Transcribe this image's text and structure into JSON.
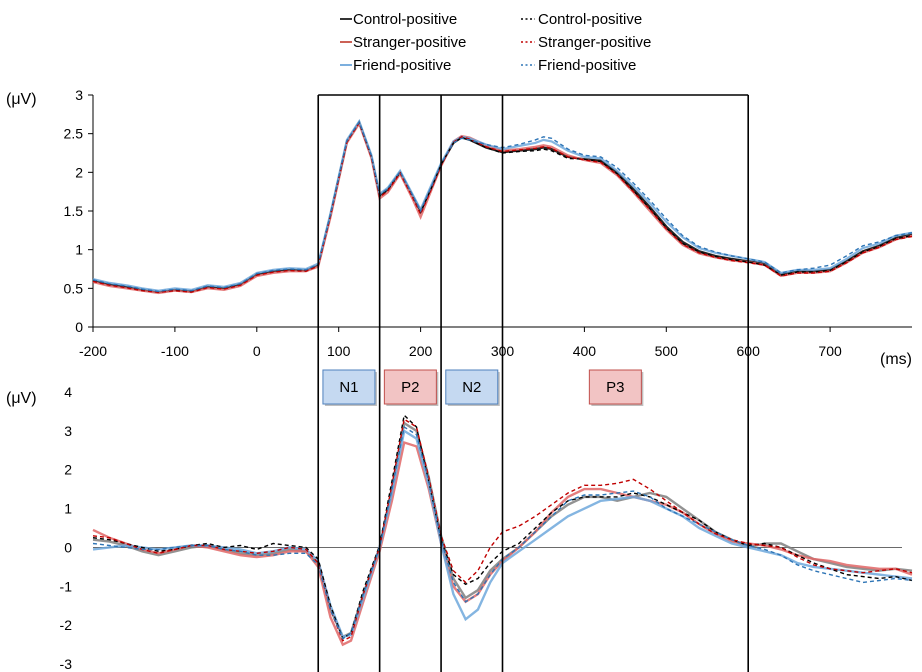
{
  "legend": {
    "left": [
      {
        "label": "Control-positive",
        "color": "#000000",
        "style": "solid"
      },
      {
        "label": "Stranger-positive",
        "color": "#c0392b",
        "style": "solid"
      },
      {
        "label": "Friend-positive",
        "color": "#5b9bd5",
        "style": "solid"
      }
    ],
    "right": [
      {
        "label": "Control-positive",
        "color": "#000000",
        "style": "dotted"
      },
      {
        "label": "Stranger-positive",
        "color": "#c00000",
        "style": "dotted"
      },
      {
        "label": "Friend-positive",
        "color": "#2e75b6",
        "style": "dotted"
      }
    ]
  },
  "axis_units": {
    "top_y": "(μV)",
    "bottom_y": "(μV)",
    "x": "(ms)"
  },
  "components": [
    {
      "label": "N1",
      "color": "#c5d9f1",
      "border": "#4f81bd"
    },
    {
      "label": "P2",
      "color": "#f2c4c4",
      "border": "#c0504d"
    },
    {
      "label": "N2",
      "color": "#c5d9f1",
      "border": "#4f81bd"
    },
    {
      "label": "P3",
      "color": "#f2c4c4",
      "border": "#c0504d"
    }
  ],
  "window_boundaries_ms": [
    75,
    150,
    225,
    300,
    600
  ],
  "chart_data": [
    {
      "type": "line",
      "xlabel": "(ms)",
      "ylabel": "(μV)",
      "xlim": [
        -200,
        800
      ],
      "ylim": [
        0,
        3
      ],
      "xticks": [
        -200,
        -100,
        0,
        100,
        200,
        300,
        400,
        500,
        600,
        700
      ],
      "yticks": [
        0,
        0.5,
        1,
        1.5,
        2,
        2.5,
        3
      ],
      "x": [
        -200,
        -180,
        -160,
        -140,
        -120,
        -100,
        -80,
        -60,
        -40,
        -20,
        0,
        20,
        40,
        60,
        75,
        90,
        110,
        125,
        140,
        150,
        160,
        175,
        190,
        200,
        215,
        225,
        240,
        250,
        260,
        280,
        300,
        320,
        340,
        350,
        360,
        380,
        400,
        420,
        440,
        460,
        480,
        500,
        520,
        540,
        560,
        580,
        600,
        620,
        640,
        660,
        680,
        700,
        720,
        740,
        760,
        780,
        800
      ],
      "series": [
        {
          "name": "Control-positive",
          "color": "#000000",
          "style": "solid",
          "values": [
            0.6,
            0.55,
            0.52,
            0.48,
            0.45,
            0.48,
            0.46,
            0.52,
            0.5,
            0.55,
            0.68,
            0.72,
            0.74,
            0.73,
            0.8,
            1.45,
            2.4,
            2.65,
            2.2,
            1.7,
            1.78,
            2.0,
            1.7,
            1.5,
            1.85,
            2.1,
            2.38,
            2.45,
            2.42,
            2.32,
            2.26,
            2.28,
            2.3,
            2.32,
            2.3,
            2.2,
            2.17,
            2.15,
            2.0,
            1.78,
            1.55,
            1.3,
            1.1,
            0.98,
            0.92,
            0.88,
            0.85,
            0.82,
            0.68,
            0.72,
            0.72,
            0.74,
            0.85,
            0.98,
            1.05,
            1.15,
            1.2
          ]
        },
        {
          "name": "Stranger-positive",
          "color": "#e06666",
          "style": "solid",
          "values": [
            0.58,
            0.53,
            0.5,
            0.47,
            0.44,
            0.47,
            0.45,
            0.5,
            0.48,
            0.53,
            0.66,
            0.7,
            0.72,
            0.72,
            0.78,
            1.42,
            2.38,
            2.63,
            2.18,
            1.66,
            1.74,
            1.98,
            1.66,
            1.42,
            1.82,
            2.08,
            2.4,
            2.47,
            2.45,
            2.35,
            2.28,
            2.3,
            2.33,
            2.35,
            2.33,
            2.22,
            2.16,
            2.12,
            1.96,
            1.74,
            1.5,
            1.26,
            1.06,
            0.95,
            0.9,
            0.86,
            0.84,
            0.8,
            0.66,
            0.7,
            0.7,
            0.72,
            0.83,
            0.96,
            1.03,
            1.13,
            1.18
          ]
        },
        {
          "name": "Friend-positive",
          "color": "#6fa8dc",
          "style": "solid",
          "values": [
            0.62,
            0.57,
            0.54,
            0.5,
            0.47,
            0.5,
            0.48,
            0.54,
            0.52,
            0.57,
            0.7,
            0.74,
            0.76,
            0.75,
            0.82,
            1.47,
            2.42,
            2.66,
            2.22,
            1.72,
            1.8,
            2.02,
            1.72,
            1.52,
            1.88,
            2.12,
            2.4,
            2.46,
            2.44,
            2.36,
            2.3,
            2.34,
            2.38,
            2.42,
            2.4,
            2.28,
            2.2,
            2.18,
            2.02,
            1.82,
            1.6,
            1.36,
            1.16,
            1.02,
            0.96,
            0.92,
            0.88,
            0.84,
            0.7,
            0.74,
            0.74,
            0.76,
            0.88,
            1.02,
            1.08,
            1.18,
            1.22
          ]
        },
        {
          "name": "Control-positive",
          "color": "#000000",
          "style": "dotted",
          "values": [
            0.6,
            0.55,
            0.52,
            0.48,
            0.45,
            0.48,
            0.46,
            0.52,
            0.5,
            0.55,
            0.68,
            0.72,
            0.74,
            0.73,
            0.8,
            1.45,
            2.4,
            2.64,
            2.2,
            1.69,
            1.77,
            2.0,
            1.69,
            1.48,
            1.84,
            2.1,
            2.38,
            2.45,
            2.42,
            2.32,
            2.25,
            2.27,
            2.28,
            2.3,
            2.28,
            2.18,
            2.17,
            2.14,
            1.98,
            1.76,
            1.53,
            1.28,
            1.08,
            0.97,
            0.91,
            0.87,
            0.84,
            0.8,
            0.67,
            0.71,
            0.71,
            0.73,
            0.84,
            0.97,
            1.04,
            1.14,
            1.18
          ]
        },
        {
          "name": "Stranger-positive",
          "color": "#c00000",
          "style": "dotted",
          "values": [
            0.59,
            0.54,
            0.51,
            0.47,
            0.45,
            0.47,
            0.45,
            0.51,
            0.49,
            0.54,
            0.67,
            0.71,
            0.73,
            0.72,
            0.79,
            1.44,
            2.39,
            2.64,
            2.19,
            1.68,
            1.76,
            1.99,
            1.68,
            1.46,
            1.83,
            2.09,
            2.39,
            2.46,
            2.43,
            2.33,
            2.27,
            2.29,
            2.31,
            2.33,
            2.31,
            2.2,
            2.16,
            2.13,
            1.97,
            1.75,
            1.52,
            1.27,
            1.07,
            0.96,
            0.9,
            0.86,
            0.83,
            0.8,
            0.66,
            0.7,
            0.7,
            0.72,
            0.83,
            0.96,
            1.03,
            1.13,
            1.17
          ]
        },
        {
          "name": "Friend-positive",
          "color": "#2e75b6",
          "style": "dotted",
          "values": [
            0.61,
            0.56,
            0.53,
            0.49,
            0.46,
            0.49,
            0.47,
            0.53,
            0.51,
            0.56,
            0.69,
            0.73,
            0.75,
            0.74,
            0.81,
            1.46,
            2.41,
            2.65,
            2.21,
            1.71,
            1.79,
            2.01,
            1.71,
            1.5,
            1.86,
            2.11,
            2.38,
            2.44,
            2.42,
            2.36,
            2.32,
            2.36,
            2.42,
            2.46,
            2.44,
            2.3,
            2.22,
            2.2,
            2.06,
            1.86,
            1.64,
            1.4,
            1.18,
            1.04,
            0.97,
            0.92,
            0.88,
            0.84,
            0.7,
            0.74,
            0.76,
            0.8,
            0.92,
            1.05,
            1.1,
            1.18,
            1.22
          ]
        }
      ]
    },
    {
      "type": "line",
      "ylabel": "(μV)",
      "xlim": [
        -200,
        800
      ],
      "ylim": [
        -3,
        4
      ],
      "yticks": [
        -3,
        -2,
        -1,
        0,
        1,
        2,
        3,
        4
      ],
      "x": [
        -200,
        -180,
        -160,
        -140,
        -120,
        -100,
        -80,
        -60,
        -40,
        -20,
        0,
        20,
        40,
        60,
        75,
        90,
        105,
        115,
        130,
        150,
        165,
        180,
        195,
        210,
        225,
        240,
        255,
        270,
        285,
        300,
        320,
        340,
        360,
        380,
        400,
        420,
        440,
        460,
        480,
        500,
        520,
        540,
        560,
        580,
        600,
        620,
        640,
        660,
        680,
        700,
        720,
        740,
        760,
        780,
        800
      ],
      "series": [
        {
          "name": "Control-positive",
          "color": "#000000",
          "style": "solid",
          "values": [
            0.2,
            0.15,
            0.05,
            -0.1,
            -0.2,
            -0.1,
            0.0,
            0.05,
            -0.05,
            -0.15,
            -0.2,
            -0.15,
            -0.05,
            -0.1,
            -0.4,
            -1.6,
            -2.3,
            -2.2,
            -1.2,
            0.0,
            1.5,
            3.2,
            3.0,
            1.8,
            0.3,
            -0.8,
            -1.3,
            -1.1,
            -0.6,
            -0.3,
            0.0,
            0.4,
            0.8,
            1.1,
            1.3,
            1.3,
            1.2,
            1.3,
            1.4,
            1.3,
            1.0,
            0.7,
            0.4,
            0.2,
            0.0,
            0.1,
            0.1,
            -0.1,
            -0.3,
            -0.4,
            -0.5,
            -0.55,
            -0.6,
            -0.55,
            -0.6
          ]
        },
        {
          "name": "Stranger-positive",
          "color": "#e06666",
          "style": "solid",
          "values": [
            0.45,
            0.25,
            0.1,
            -0.05,
            -0.15,
            -0.05,
            0.05,
            0.0,
            -0.1,
            -0.2,
            -0.25,
            -0.2,
            -0.1,
            -0.1,
            -0.5,
            -1.8,
            -2.5,
            -2.4,
            -1.4,
            -0.1,
            1.2,
            2.7,
            2.6,
            1.5,
            0.1,
            -1.0,
            -1.4,
            -1.2,
            -0.7,
            -0.35,
            0.0,
            0.4,
            0.9,
            1.3,
            1.5,
            1.5,
            1.4,
            1.3,
            1.2,
            1.1,
            0.9,
            0.6,
            0.35,
            0.15,
            0.1,
            0.05,
            -0.05,
            -0.2,
            -0.3,
            -0.35,
            -0.45,
            -0.5,
            -0.55,
            -0.55,
            -0.7
          ]
        },
        {
          "name": "Friend-positive",
          "color": "#6fa8dc",
          "style": "solid",
          "values": [
            -0.05,
            0.0,
            0.05,
            0.0,
            -0.05,
            0.0,
            0.05,
            0.05,
            0.0,
            -0.05,
            -0.15,
            -0.1,
            0.0,
            -0.05,
            -0.35,
            -1.5,
            -2.3,
            -2.25,
            -1.3,
            0.0,
            1.4,
            3.0,
            2.8,
            1.6,
            0.1,
            -1.2,
            -1.85,
            -1.6,
            -0.9,
            -0.4,
            -0.1,
            0.2,
            0.5,
            0.8,
            1.0,
            1.2,
            1.25,
            1.3,
            1.2,
            1.0,
            0.8,
            0.5,
            0.3,
            0.1,
            0.0,
            -0.1,
            -0.2,
            -0.4,
            -0.5,
            -0.55,
            -0.6,
            -0.65,
            -0.7,
            -0.75,
            -0.8
          ]
        },
        {
          "name": "Control-positive",
          "color": "#000000",
          "style": "dotted",
          "values": [
            0.25,
            0.2,
            0.1,
            0.0,
            -0.1,
            -0.05,
            0.05,
            0.1,
            0.0,
            0.05,
            -0.05,
            0.1,
            0.05,
            0.0,
            -0.3,
            -1.5,
            -2.35,
            -2.2,
            -1.1,
            0.05,
            1.7,
            3.4,
            3.1,
            1.7,
            0.2,
            -0.7,
            -0.95,
            -0.8,
            -0.4,
            -0.1,
            0.1,
            0.5,
            0.9,
            1.2,
            1.3,
            1.3,
            1.3,
            1.4,
            1.3,
            1.1,
            0.9,
            0.7,
            0.4,
            0.2,
            0.05,
            0.1,
            0.0,
            -0.2,
            -0.4,
            -0.55,
            -0.7,
            -0.75,
            -0.8,
            -0.75,
            -0.85
          ]
        },
        {
          "name": "Stranger-positive",
          "color": "#c00000",
          "style": "dotted",
          "values": [
            0.3,
            0.25,
            0.1,
            -0.05,
            -0.15,
            -0.05,
            0.05,
            0.05,
            -0.05,
            -0.1,
            -0.15,
            -0.1,
            0.0,
            -0.05,
            -0.4,
            -1.6,
            -2.4,
            -2.3,
            -1.2,
            0.0,
            1.6,
            3.3,
            3.1,
            1.8,
            0.3,
            -0.6,
            -0.9,
            -0.6,
            0.0,
            0.4,
            0.55,
            0.8,
            1.1,
            1.4,
            1.6,
            1.6,
            1.65,
            1.75,
            1.5,
            1.2,
            0.9,
            0.6,
            0.35,
            0.2,
            0.1,
            0.05,
            0.0,
            -0.25,
            -0.45,
            -0.55,
            -0.6,
            -0.65,
            -0.6,
            -0.55,
            -0.65
          ]
        },
        {
          "name": "Friend-positive",
          "color": "#2e75b6",
          "style": "dotted",
          "values": [
            0.1,
            0.05,
            0.0,
            -0.05,
            -0.05,
            0.0,
            0.05,
            0.05,
            -0.05,
            -0.1,
            -0.2,
            -0.2,
            -0.15,
            -0.15,
            -0.45,
            -1.6,
            -2.35,
            -2.2,
            -1.2,
            0.0,
            1.5,
            3.1,
            2.9,
            1.7,
            0.2,
            -0.9,
            -1.4,
            -1.2,
            -0.7,
            -0.3,
            0.0,
            0.4,
            0.8,
            1.2,
            1.35,
            1.35,
            1.4,
            1.45,
            1.3,
            1.0,
            0.8,
            0.6,
            0.4,
            0.2,
            0.05,
            -0.05,
            -0.2,
            -0.45,
            -0.6,
            -0.7,
            -0.8,
            -0.9,
            -0.85,
            -0.8,
            -0.85
          ]
        }
      ]
    }
  ]
}
